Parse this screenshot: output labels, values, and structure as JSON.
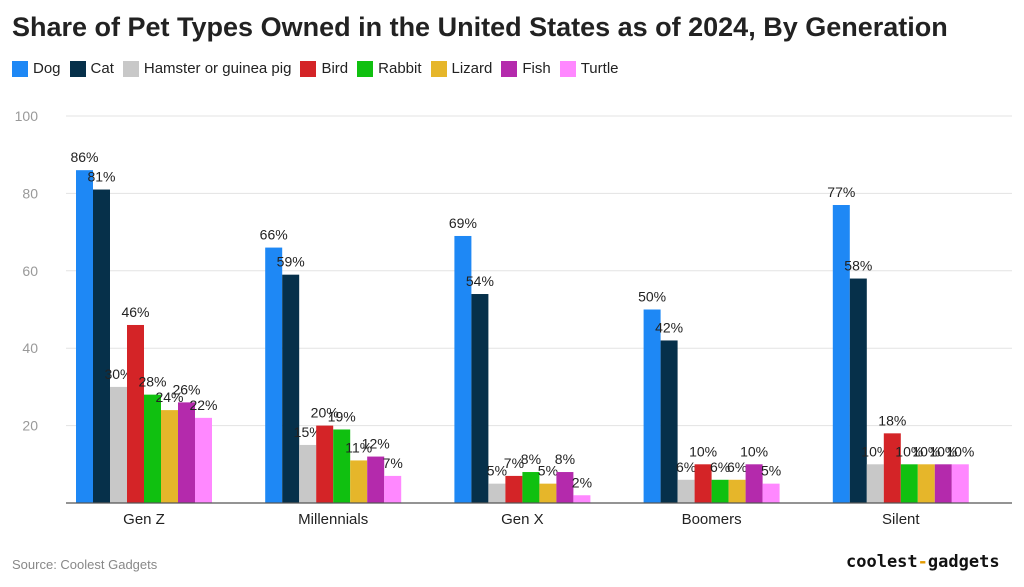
{
  "chart_data": {
    "type": "bar",
    "title": "Share of Pet Types Owned in the United States as of 2024, By Generation",
    "xlabel": "",
    "ylabel": "",
    "ylim": [
      0,
      100
    ],
    "yticks": [
      20,
      40,
      60,
      80,
      100
    ],
    "categories": [
      "Gen Z",
      "Millennials",
      "Gen X",
      "Boomers",
      "Silent"
    ],
    "value_suffix": "%",
    "series": [
      {
        "name": "Dog",
        "color": "#1e88f5",
        "values": [
          86,
          66,
          69,
          50,
          77
        ]
      },
      {
        "name": "Cat",
        "color": "#06304a",
        "values": [
          81,
          59,
          54,
          42,
          58
        ]
      },
      {
        "name": "Hamster or guinea pig",
        "color": "#c8c8c8",
        "values": [
          30,
          15,
          5,
          6,
          10
        ]
      },
      {
        "name": "Bird",
        "color": "#d42427",
        "values": [
          46,
          20,
          7,
          10,
          18
        ]
      },
      {
        "name": "Rabbit",
        "color": "#10c010",
        "values": [
          28,
          19,
          8,
          6,
          10
        ]
      },
      {
        "name": "Lizard",
        "color": "#e6b62a",
        "values": [
          24,
          11,
          5,
          6,
          10
        ]
      },
      {
        "name": "Fish",
        "color": "#b42aac",
        "values": [
          26,
          12,
          8,
          10,
          10
        ]
      },
      {
        "name": "Turtle",
        "color": "#ff88ff",
        "values": [
          22,
          7,
          2,
          5,
          10
        ]
      }
    ]
  },
  "source": "Source: Coolest Gadgets",
  "brand": {
    "part1": "coolest",
    "sep": "-",
    "part2": "gadgets"
  }
}
